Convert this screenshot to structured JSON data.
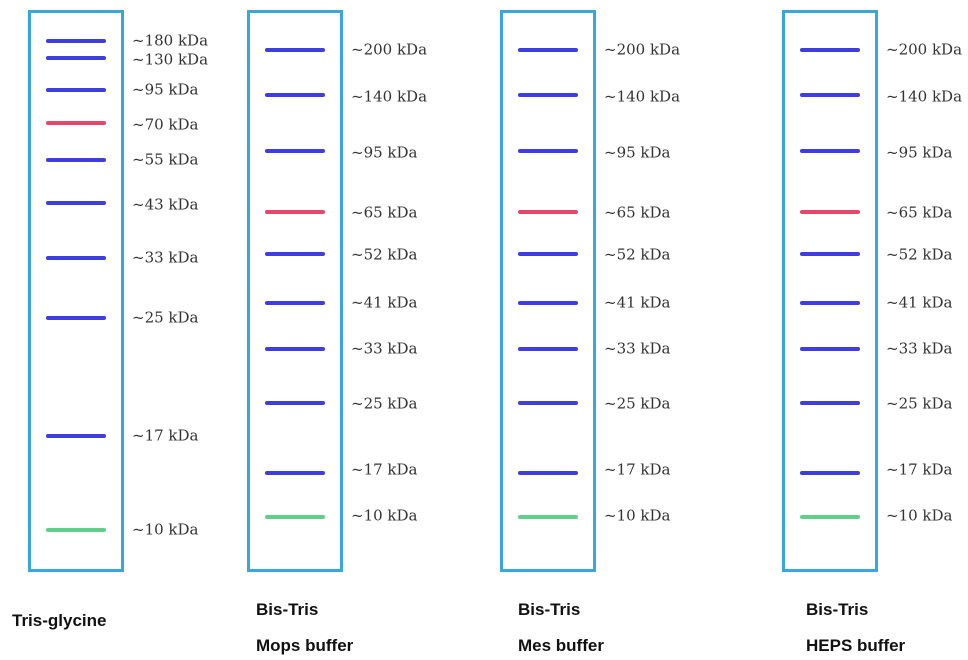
{
  "colors": {
    "lane_border": "#3aa7dc",
    "band_default": "#3d3de0",
    "band_reference": "#e8456a",
    "band_low": "#5fcf8a"
  },
  "lanes": [
    {
      "buffer_lines": [
        "Tris-glycine"
      ],
      "markers": [
        {
          "label": "~180 kDa",
          "kda": 180,
          "color": "blue"
        },
        {
          "label": "~130 kDa",
          "kda": 130,
          "color": "blue"
        },
        {
          "label": "~95 kDa",
          "kda": 95,
          "color": "blue"
        },
        {
          "label": "~70 kDa",
          "kda": 70,
          "color": "red"
        },
        {
          "label": "~55 kDa",
          "kda": 55,
          "color": "blue"
        },
        {
          "label": "~43 kDa",
          "kda": 43,
          "color": "blue"
        },
        {
          "label": "~33 kDa",
          "kda": 33,
          "color": "blue"
        },
        {
          "label": "~25 kDa",
          "kda": 25,
          "color": "blue"
        },
        {
          "label": "~17 kDa",
          "kda": 17,
          "color": "blue"
        },
        {
          "label": "~10 kDa",
          "kda": 10,
          "color": "green"
        }
      ]
    },
    {
      "buffer_lines": [
        "Bis-Tris",
        "Mops buffer"
      ],
      "markers": [
        {
          "label": "~200 kDa",
          "kda": 200,
          "color": "blue"
        },
        {
          "label": "~140 kDa",
          "kda": 140,
          "color": "blue"
        },
        {
          "label": "~95 kDa",
          "kda": 95,
          "color": "blue"
        },
        {
          "label": "~65 kDa",
          "kda": 65,
          "color": "red"
        },
        {
          "label": "~52 kDa",
          "kda": 52,
          "color": "blue"
        },
        {
          "label": "~41 kDa",
          "kda": 41,
          "color": "blue"
        },
        {
          "label": "~33 kDa",
          "kda": 33,
          "color": "blue"
        },
        {
          "label": "~25 kDa",
          "kda": 25,
          "color": "blue"
        },
        {
          "label": "~17 kDa",
          "kda": 17,
          "color": "blue"
        },
        {
          "label": "~10 kDa",
          "kda": 10,
          "color": "green"
        }
      ]
    },
    {
      "buffer_lines": [
        "Bis-Tris",
        "Mes buffer"
      ],
      "markers": [
        {
          "label": "~200 kDa",
          "kda": 200,
          "color": "blue"
        },
        {
          "label": "~140 kDa",
          "kda": 140,
          "color": "blue"
        },
        {
          "label": "~95 kDa",
          "kda": 95,
          "color": "blue"
        },
        {
          "label": "~65 kDa",
          "kda": 65,
          "color": "red"
        },
        {
          "label": "~52 kDa",
          "kda": 52,
          "color": "blue"
        },
        {
          "label": "~41 kDa",
          "kda": 41,
          "color": "blue"
        },
        {
          "label": "~33 kDa",
          "kda": 33,
          "color": "blue"
        },
        {
          "label": "~25 kDa",
          "kda": 25,
          "color": "blue"
        },
        {
          "label": "~17 kDa",
          "kda": 17,
          "color": "blue"
        },
        {
          "label": "~10 kDa",
          "kda": 10,
          "color": "green"
        }
      ]
    },
    {
      "buffer_lines": [
        "Bis-Tris",
        "HEPS buffer"
      ],
      "markers": [
        {
          "label": "~200 kDa",
          "kda": 200,
          "color": "blue"
        },
        {
          "label": "~140 kDa",
          "kda": 140,
          "color": "blue"
        },
        {
          "label": "~95 kDa",
          "kda": 95,
          "color": "blue"
        },
        {
          "label": "~65 kDa",
          "kda": 65,
          "color": "red"
        },
        {
          "label": "~52 kDa",
          "kda": 52,
          "color": "blue"
        },
        {
          "label": "~41 kDa",
          "kda": 41,
          "color": "blue"
        },
        {
          "label": "~33 kDa",
          "kda": 33,
          "color": "blue"
        },
        {
          "label": "~25 kDa",
          "kda": 25,
          "color": "blue"
        },
        {
          "label": "~17 kDa",
          "kda": 17,
          "color": "blue"
        },
        {
          "label": "~10 kDa",
          "kda": 10,
          "color": "green"
        }
      ]
    }
  ]
}
